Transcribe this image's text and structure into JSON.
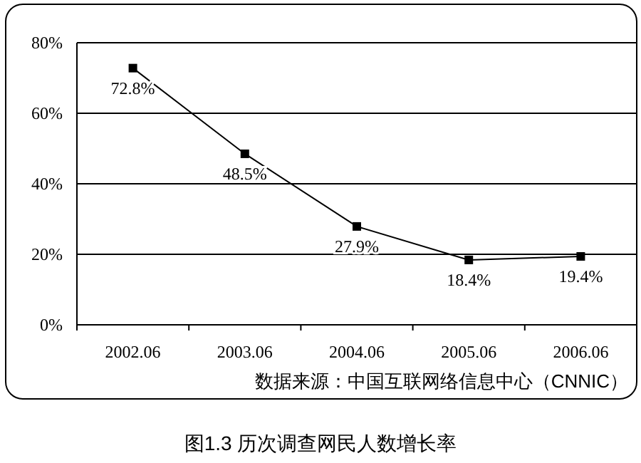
{
  "chart_data": {
    "type": "line",
    "title": "图1.3  历次调查网民人数增长率",
    "categories": [
      "2002.06",
      "2003.06",
      "2004.06",
      "2005.06",
      "2006.06"
    ],
    "series": [
      {
        "color": "#000000",
        "values": [
          72.8,
          48.5,
          27.9,
          18.4,
          19.4
        ],
        "value_labels": [
          "72.8%",
          "48.5%",
          "27.9%",
          "18.4%",
          "19.4%"
        ]
      }
    ],
    "ylim": [
      0,
      80
    ],
    "yticks": [
      {
        "value": 0,
        "label": "0%"
      },
      {
        "value": 20,
        "label": "20%"
      },
      {
        "value": 40,
        "label": "40%"
      },
      {
        "value": 60,
        "label": "60%"
      },
      {
        "value": 80,
        "label": "80%"
      }
    ],
    "grid": "y",
    "marker": "square",
    "line_style": "solid",
    "annotations": [
      "数据来源：中国互联网络信息中心（CNNIC）"
    ]
  }
}
